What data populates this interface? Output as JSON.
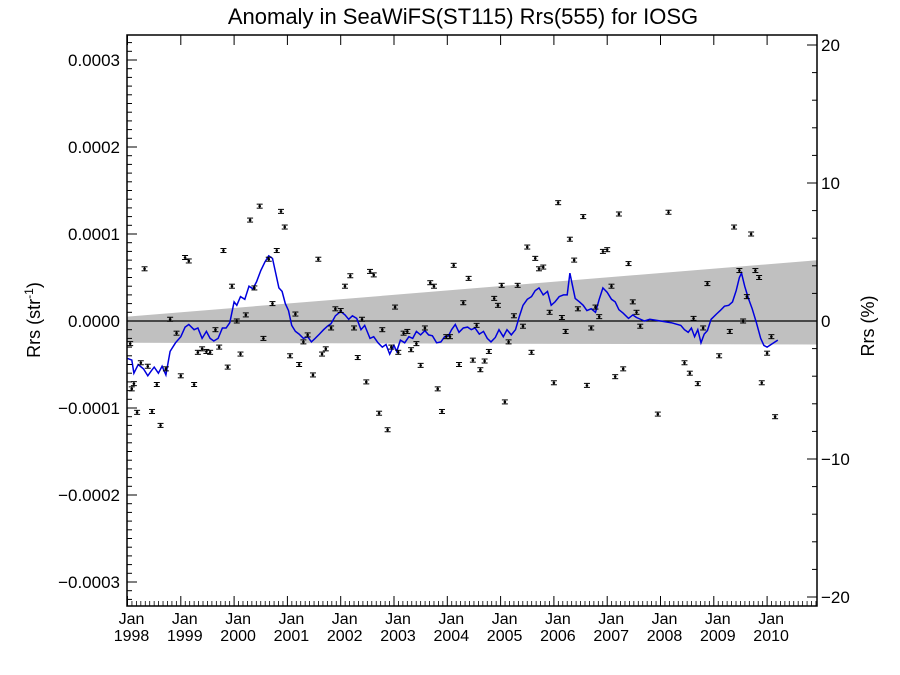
{
  "chart_data": {
    "type": "scatter",
    "title": "Anomaly in SeaWiFS(ST115) Rrs(555) for IOSG",
    "ylabel_left": "Rrs (str",
    "ylabel_left_sup": "-1",
    "ylabel_left_close": ")",
    "ylabel_right": "Rrs (%)",
    "x_range": [
      1998.0,
      2010.96
    ],
    "y_range": [
      -0.00033,
      0.00033
    ],
    "y2_range": [
      -20.6,
      20.6
    ],
    "y_ticks": [
      -0.0003,
      -0.0002,
      -0.0001,
      0.0,
      0.0001,
      0.0002,
      0.0003
    ],
    "y_tick_labels": [
      "−0.0003",
      "−0.0002",
      "−0.0001",
      "0.0000",
      "0.0001",
      "0.0002",
      "0.0003"
    ],
    "y2_ticks": [
      -20,
      -10,
      0,
      10,
      20
    ],
    "y2_tick_labels": [
      "−20",
      "−10",
      "0",
      "10",
      "20"
    ],
    "x_ticks": [
      {
        "month": "Jan",
        "year": "1998",
        "x": 1998
      },
      {
        "month": "Jan",
        "year": "1999",
        "x": 1999
      },
      {
        "month": "Jan",
        "year": "2000",
        "x": 2000
      },
      {
        "month": "Jan",
        "year": "2001",
        "x": 2001
      },
      {
        "month": "Jan",
        "year": "2002",
        "x": 2002
      },
      {
        "month": "Jan",
        "year": "2003",
        "x": 2003
      },
      {
        "month": "Jan",
        "year": "2004",
        "x": 2004
      },
      {
        "month": "Jan",
        "year": "2005",
        "x": 2005
      },
      {
        "month": "Jan",
        "year": "2006",
        "x": 2006
      },
      {
        "month": "Jan",
        "year": "2007",
        "x": 2007
      },
      {
        "month": "Jan",
        "year": "2008",
        "x": 2008
      },
      {
        "month": "Jan",
        "year": "2009",
        "x": 2009
      },
      {
        "month": "Jan",
        "year": "2010",
        "x": 2010
      }
    ],
    "band": {
      "x": [
        1998.0,
        2010.96
      ],
      "upper": [
        5e-06,
        7e-05
      ],
      "lower": [
        -2.5e-05,
        -2.7e-05
      ]
    },
    "colors": {
      "smooth_line": "#0000dd",
      "points": "#000000",
      "band": "#c0c0c0",
      "zero_line": "#000000"
    },
    "points": [
      [
        1998.05,
        -2.6e-05
      ],
      [
        1998.08,
        -7.8e-05
      ],
      [
        1998.12,
        -7.2e-05
      ],
      [
        1998.18,
        -0.000105
      ],
      [
        1998.25,
        -4.8e-05
      ],
      [
        1998.32,
        6e-05
      ],
      [
        1998.38,
        -5.2e-05
      ],
      [
        1998.46,
        -0.000104
      ],
      [
        1998.55,
        -7.3e-05
      ],
      [
        1998.62,
        -0.00012
      ],
      [
        1998.72,
        -5.5e-05
      ],
      [
        1998.8,
        2e-06
      ],
      [
        1998.92,
        -1.4e-05
      ],
      [
        1999.0,
        -6.3e-05
      ],
      [
        1999.08,
        7.3e-05
      ],
      [
        1999.15,
        6.9e-05
      ],
      [
        1999.25,
        -7.3e-05
      ],
      [
        1999.32,
        -3.6e-05
      ],
      [
        1999.4,
        -3.2e-05
      ],
      [
        1999.48,
        -3.5e-05
      ],
      [
        1999.55,
        -3.6e-05
      ],
      [
        1999.65,
        -1e-05
      ],
      [
        1999.72,
        -3e-05
      ],
      [
        1999.8,
        8.1e-05
      ],
      [
        1999.88,
        -5.3e-05
      ],
      [
        1999.96,
        4e-05
      ],
      [
        2000.05,
        0.0
      ],
      [
        2000.12,
        -3.8e-05
      ],
      [
        2000.22,
        7e-06
      ],
      [
        2000.3,
        0.000116
      ],
      [
        2000.38,
        3.8e-05
      ],
      [
        2000.48,
        0.000132
      ],
      [
        2000.55,
        -2e-05
      ],
      [
        2000.65,
        7.1e-05
      ],
      [
        2000.72,
        2e-05
      ],
      [
        2000.8,
        8.1e-05
      ],
      [
        2000.88,
        0.000126
      ],
      [
        2000.95,
        0.000108
      ],
      [
        2001.05,
        -4e-05
      ],
      [
        2001.15,
        8e-06
      ],
      [
        2001.22,
        -5e-05
      ],
      [
        2001.3,
        -2.4e-05
      ],
      [
        2001.38,
        -1.6e-05
      ],
      [
        2001.48,
        -6.2e-05
      ],
      [
        2001.58,
        7.1e-05
      ],
      [
        2001.65,
        -3.8e-05
      ],
      [
        2001.72,
        -3.2e-05
      ],
      [
        2001.82,
        -8e-06
      ],
      [
        2001.9,
        1.4e-05
      ],
      [
        2002.0,
        1.2e-05
      ],
      [
        2002.08,
        4e-05
      ],
      [
        2002.18,
        5.2e-05
      ],
      [
        2002.25,
        -8e-06
      ],
      [
        2002.32,
        -4.2e-05
      ],
      [
        2002.4,
        2e-06
      ],
      [
        2002.48,
        -7e-05
      ],
      [
        2002.55,
        5.7e-05
      ],
      [
        2002.62,
        5.3e-05
      ],
      [
        2002.72,
        -0.000106
      ],
      [
        2002.78,
        -1e-05
      ],
      [
        2002.88,
        -0.000125
      ],
      [
        2002.95,
        -3e-05
      ],
      [
        2003.02,
        1.6e-05
      ],
      [
        2003.08,
        -3.6e-05
      ],
      [
        2003.18,
        -1.4e-05
      ],
      [
        2003.25,
        -1.2e-05
      ],
      [
        2003.32,
        -3.3e-05
      ],
      [
        2003.42,
        -2.6e-05
      ],
      [
        2003.5,
        -5.1e-05
      ],
      [
        2003.58,
        -8e-06
      ],
      [
        2003.68,
        4.4e-05
      ],
      [
        2003.75,
        4e-05
      ],
      [
        2003.82,
        -7.8e-05
      ],
      [
        2003.9,
        -0.000104
      ],
      [
        2003.98,
        -1.8e-05
      ],
      [
        2004.05,
        -1.8e-05
      ],
      [
        2004.12,
        6.4e-05
      ],
      [
        2004.22,
        -5e-05
      ],
      [
        2004.3,
        2.1e-05
      ],
      [
        2004.4,
        4.9e-05
      ],
      [
        2004.48,
        -4.5e-05
      ],
      [
        2004.55,
        -5e-06
      ],
      [
        2004.62,
        -5.6e-05
      ],
      [
        2004.7,
        -4.6e-05
      ],
      [
        2004.78,
        -3.5e-05
      ],
      [
        2004.88,
        2.6e-05
      ],
      [
        2004.95,
        1.8e-05
      ],
      [
        2005.02,
        4.1e-05
      ],
      [
        2005.08,
        -9.3e-05
      ],
      [
        2005.15,
        -2.4e-05
      ],
      [
        2005.25,
        6e-06
      ],
      [
        2005.32,
        4.1e-05
      ],
      [
        2005.42,
        -6e-06
      ],
      [
        2005.5,
        8.5e-05
      ],
      [
        2005.58,
        -3.6e-05
      ],
      [
        2005.65,
        7.2e-05
      ],
      [
        2005.72,
        6e-05
      ],
      [
        2005.8,
        6.2e-05
      ],
      [
        2005.92,
        1e-05
      ],
      [
        2006.0,
        -7.1e-05
      ],
      [
        2006.08,
        0.000136
      ],
      [
        2006.15,
        4e-06
      ],
      [
        2006.22,
        -1.2e-05
      ],
      [
        2006.3,
        9.4e-05
      ],
      [
        2006.38,
        7e-05
      ],
      [
        2006.45,
        1.4e-05
      ],
      [
        2006.55,
        0.00012
      ],
      [
        2006.62,
        -7.4e-05
      ],
      [
        2006.7,
        -8e-06
      ],
      [
        2006.78,
        1.6e-05
      ],
      [
        2006.85,
        5e-06
      ],
      [
        2006.92,
        8e-05
      ],
      [
        2007.0,
        8.2e-05
      ],
      [
        2007.08,
        4e-05
      ],
      [
        2007.15,
        -6.4e-05
      ],
      [
        2007.22,
        0.000123
      ],
      [
        2007.3,
        -5.5e-05
      ],
      [
        2007.4,
        6.6e-05
      ],
      [
        2007.48,
        2.2e-05
      ],
      [
        2007.55,
        1e-05
      ],
      [
        2007.62,
        -6e-06
      ],
      [
        2007.95,
        -0.000107
      ],
      [
        2008.15,
        0.000125
      ],
      [
        2008.45,
        -4.8e-05
      ],
      [
        2008.55,
        -6e-05
      ],
      [
        2008.62,
        3e-06
      ],
      [
        2008.7,
        -7.2e-05
      ],
      [
        2008.8,
        -8e-06
      ],
      [
        2008.88,
        4.3e-05
      ],
      [
        2009.1,
        -4e-05
      ],
      [
        2009.3,
        -1.2e-05
      ],
      [
        2009.38,
        0.000108
      ],
      [
        2009.48,
        5.8e-05
      ],
      [
        2009.55,
        0.0
      ],
      [
        2009.62,
        2.8e-05
      ],
      [
        2009.7,
        0.0001
      ],
      [
        2009.78,
        5.8e-05
      ],
      [
        2009.85,
        5e-05
      ],
      [
        2009.9,
        -7.1e-05
      ],
      [
        2010.0,
        -3.7e-05
      ],
      [
        2010.08,
        -1.8e-05
      ],
      [
        2010.15,
        -0.00011
      ]
    ],
    "smooth": [
      [
        1998.0,
        -4.3e-05
      ],
      [
        1998.08,
        -4.5e-05
      ],
      [
        1998.12,
        -6e-05
      ],
      [
        1998.2,
        -5e-05
      ],
      [
        1998.3,
        -5.5e-05
      ],
      [
        1998.38,
        -6.3e-05
      ],
      [
        1998.45,
        -5.7e-05
      ],
      [
        1998.5,
        -5.3e-05
      ],
      [
        1998.58,
        -6e-05
      ],
      [
        1998.65,
        -5.2e-05
      ],
      [
        1998.72,
        -6.2e-05
      ],
      [
        1998.8,
        -3.5e-05
      ],
      [
        1998.9,
        -2.5e-05
      ],
      [
        1999.0,
        -1.8e-05
      ],
      [
        1999.08,
        -7e-06
      ],
      [
        1999.15,
        -4e-06
      ],
      [
        1999.25,
        -1e-05
      ],
      [
        1999.32,
        -8e-06
      ],
      [
        1999.4,
        -2e-05
      ],
      [
        1999.48,
        -1.2e-05
      ],
      [
        1999.55,
        -2e-05
      ],
      [
        1999.62,
        -2.3e-05
      ],
      [
        1999.7,
        -2e-05
      ],
      [
        1999.78,
        -8e-06
      ],
      [
        1999.85,
        -8e-06
      ],
      [
        1999.92,
        -2e-06
      ],
      [
        2000.0,
        2.2e-05
      ],
      [
        2000.05,
        1.8e-05
      ],
      [
        2000.12,
        2.8e-05
      ],
      [
        2000.2,
        2.5e-05
      ],
      [
        2000.28,
        4e-05
      ],
      [
        2000.35,
        3.7e-05
      ],
      [
        2000.42,
        4.5e-05
      ],
      [
        2000.5,
        5.8e-05
      ],
      [
        2000.58,
        6.8e-05
      ],
      [
        2000.65,
        7.5e-05
      ],
      [
        2000.72,
        7.2e-05
      ],
      [
        2000.78,
        5.5e-05
      ],
      [
        2000.84,
        3.8e-05
      ],
      [
        2000.9,
        3.4e-05
      ],
      [
        2000.96,
        2e-05
      ],
      [
        2001.02,
        1.2e-05
      ],
      [
        2001.08,
        -5e-06
      ],
      [
        2001.15,
        -1.2e-05
      ],
      [
        2001.22,
        -1.5e-05
      ],
      [
        2001.3,
        -2e-05
      ],
      [
        2001.38,
        -1.8e-05
      ],
      [
        2001.45,
        -2.4e-05
      ],
      [
        2001.52,
        -2e-05
      ],
      [
        2001.6,
        -1.5e-05
      ],
      [
        2001.68,
        -1e-05
      ],
      [
        2001.75,
        -6e-06
      ],
      [
        2001.82,
        -3e-06
      ],
      [
        2001.9,
        6e-06
      ],
      [
        2002.0,
        1.1e-05
      ],
      [
        2002.08,
        7e-06
      ],
      [
        2002.15,
        2e-06
      ],
      [
        2002.22,
        6e-06
      ],
      [
        2002.3,
        3e-06
      ],
      [
        2002.38,
        -1e-05
      ],
      [
        2002.45,
        -5e-06
      ],
      [
        2002.55,
        -2e-05
      ],
      [
        2002.62,
        -1.8e-05
      ],
      [
        2002.7,
        -2.5e-05
      ],
      [
        2002.78,
        -3e-05
      ],
      [
        2002.85,
        -2.7e-05
      ],
      [
        2002.92,
        -3.8e-05
      ],
      [
        2003.0,
        -2.8e-05
      ],
      [
        2003.05,
        -3.5e-05
      ],
      [
        2003.12,
        -2.2e-05
      ],
      [
        2003.2,
        -2.5e-05
      ],
      [
        2003.28,
        -1.8e-05
      ],
      [
        2003.35,
        -2e-05
      ],
      [
        2003.42,
        -1.2e-05
      ],
      [
        2003.5,
        -1.6e-05
      ],
      [
        2003.58,
        -1.1e-05
      ],
      [
        2003.65,
        -1.6e-05
      ],
      [
        2003.72,
        -1.7e-05
      ],
      [
        2003.8,
        -2.5e-05
      ],
      [
        2003.88,
        -2.4e-05
      ],
      [
        2003.95,
        -1.8e-05
      ],
      [
        2004.02,
        -1.7e-05
      ],
      [
        2004.08,
        -1e-05
      ],
      [
        2004.15,
        -4e-06
      ],
      [
        2004.22,
        -1.3e-05
      ],
      [
        2004.3,
        -8e-06
      ],
      [
        2004.38,
        -7e-06
      ],
      [
        2004.45,
        -1e-05
      ],
      [
        2004.52,
        -8e-06
      ],
      [
        2004.6,
        -1.5e-05
      ],
      [
        2004.68,
        -1.2e-05
      ],
      [
        2004.75,
        -2e-05
      ],
      [
        2004.82,
        -2.4e-05
      ],
      [
        2004.9,
        -1.9e-05
      ],
      [
        2004.97,
        -1e-05
      ],
      [
        2005.05,
        -1.8e-05
      ],
      [
        2005.12,
        -1e-05
      ],
      [
        2005.2,
        -1.6e-05
      ],
      [
        2005.28,
        -1e-05
      ],
      [
        2005.35,
        5e-06
      ],
      [
        2005.42,
        1.8e-05
      ],
      [
        2005.5,
        2.5e-05
      ],
      [
        2005.58,
        2.8e-05
      ],
      [
        2005.65,
        3.5e-05
      ],
      [
        2005.72,
        3.8e-05
      ],
      [
        2005.8,
        3e-05
      ],
      [
        2005.88,
        3.4e-05
      ],
      [
        2005.95,
        1.8e-05
      ],
      [
        2006.02,
        2.2e-05
      ],
      [
        2006.1,
        2.8e-05
      ],
      [
        2006.18,
        3e-05
      ],
      [
        2006.25,
        3e-05
      ],
      [
        2006.3,
        5.5e-05
      ],
      [
        2006.35,
        4e-05
      ],
      [
        2006.4,
        2.6e-05
      ],
      [
        2006.48,
        2.2e-05
      ],
      [
        2006.55,
        1.8e-05
      ],
      [
        2006.62,
        1.2e-05
      ],
      [
        2006.7,
        1.4e-05
      ],
      [
        2006.78,
        1e-05
      ],
      [
        2006.85,
        2.5e-05
      ],
      [
        2006.92,
        3.8e-05
      ],
      [
        2007.0,
        3.3e-05
      ],
      [
        2007.08,
        2.5e-05
      ],
      [
        2007.15,
        2.2e-05
      ],
      [
        2007.22,
        1.3e-05
      ],
      [
        2007.3,
        9e-06
      ],
      [
        2007.4,
        3e-06
      ],
      [
        2007.48,
        7e-06
      ],
      [
        2007.55,
        4e-06
      ],
      [
        2007.7,
        0.0
      ],
      [
        2007.8,
        2e-06
      ],
      [
        2008.0,
        0.0
      ],
      [
        2008.2,
        -2e-06
      ],
      [
        2008.38,
        -5e-06
      ],
      [
        2008.45,
        -1e-05
      ],
      [
        2008.52,
        -1.3e-05
      ],
      [
        2008.58,
        -8e-06
      ],
      [
        2008.64,
        -1.8e-05
      ],
      [
        2008.7,
        -1e-05
      ],
      [
        2008.76,
        -2.5e-05
      ],
      [
        2008.82,
        -1.5e-05
      ],
      [
        2008.88,
        -1.1e-05
      ],
      [
        2008.95,
        2e-06
      ],
      [
        2009.05,
        8e-06
      ],
      [
        2009.12,
        1.2e-05
      ],
      [
        2009.2,
        1.7e-05
      ],
      [
        2009.28,
        1.8e-05
      ],
      [
        2009.35,
        2.2e-05
      ],
      [
        2009.42,
        3.5e-05
      ],
      [
        2009.48,
        5e-05
      ],
      [
        2009.52,
        5.5e-05
      ],
      [
        2009.58,
        4e-05
      ],
      [
        2009.65,
        2.6e-05
      ],
      [
        2009.72,
        1.4e-05
      ],
      [
        2009.8,
        -2e-06
      ],
      [
        2009.88,
        -2e-05
      ],
      [
        2009.94,
        -2.8e-05
      ],
      [
        2010.0,
        -3e-05
      ],
      [
        2010.1,
        -2.6e-05
      ],
      [
        2010.2,
        -2.2e-05
      ]
    ]
  }
}
